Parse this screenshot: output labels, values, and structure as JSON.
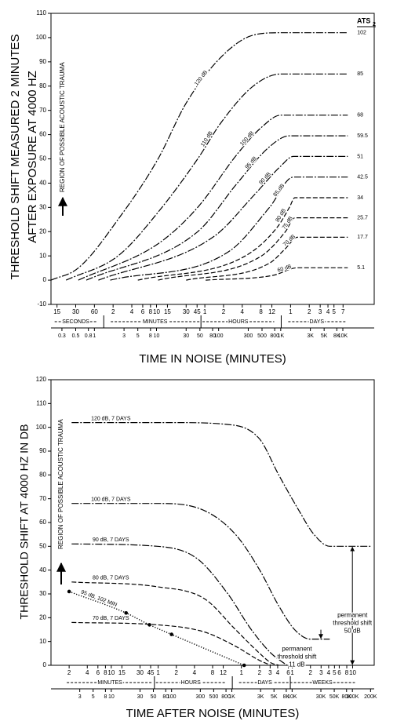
{
  "chart_data": [
    {
      "type": "line",
      "y_label": [
        "THRESHOLD SHIFT MEASURED 2 MINUTES",
        "AFTER EXPOSURE AT 4000 HZ"
      ],
      "x_label": "TIME IN NOISE (MINUTES)",
      "region_label": "REGION OF POSSIBLE ACOUSTIC TRAUMA",
      "end_header": "ATS",
      "end_header_sub": "2",
      "log_x": true,
      "xlim": [
        0.2,
        32000
      ],
      "ylim": [
        -10,
        110
      ],
      "yticks": [
        -10,
        0,
        10,
        20,
        30,
        40,
        50,
        60,
        70,
        80,
        90,
        100,
        110
      ],
      "xticks": [
        0.3,
        0.5,
        0.8,
        1,
        3,
        5,
        8,
        10,
        30,
        50,
        80,
        100,
        300,
        500,
        800,
        {
          "value": 1000,
          "label": "1K"
        },
        {
          "value": 3000,
          "label": "3K"
        },
        {
          "value": 5000,
          "label": "5K"
        },
        {
          "value": 8000,
          "label": "8K"
        },
        {
          "value": 10000,
          "label": "10K"
        }
      ],
      "x_groups": [
        {
          "name": "SECONDS",
          "ticks": [
            {
              "value": 0.25,
              "label": "15"
            },
            {
              "value": 0.5,
              "label": "30"
            },
            {
              "value": 1,
              "label": "60"
            }
          ]
        },
        {
          "name": "MINUTES",
          "ticks": [
            2,
            4,
            6,
            8,
            10,
            15,
            30,
            45
          ]
        },
        {
          "name": "HOURS",
          "ticks": [
            {
              "value": 60,
              "label": "1"
            },
            {
              "value": 120,
              "label": "2"
            },
            {
              "value": 240,
              "label": "4"
            },
            {
              "value": 480,
              "label": "8"
            },
            {
              "value": 720,
              "label": "12"
            }
          ]
        },
        {
          "name": "DAYS",
          "ticks": [
            {
              "value": 1440,
              "label": "1"
            },
            {
              "value": 2880,
              "label": "2"
            },
            {
              "value": 4320,
              "label": "3"
            },
            {
              "value": 5760,
              "label": "4"
            },
            {
              "value": 7200,
              "label": "5"
            },
            {
              "value": 10080,
              "label": "7"
            }
          ]
        }
      ],
      "series": [
        {
          "name": "120 dB",
          "color": "#000",
          "style": "dashdot",
          "end_label": "102",
          "x": [
            0.2,
            0.55,
            2.4,
            10.6,
            30,
            110,
            360,
            1000,
            12000
          ],
          "values": [
            0,
            5,
            25,
            50,
            73,
            92,
            101,
            102,
            102
          ]
        },
        {
          "name": "110 dB",
          "color": "#000",
          "style": "dashdot",
          "end_label": "85",
          "x": [
            0.35,
            2.4,
            10.6,
            46,
            110,
            360,
            1000,
            12000
          ],
          "values": [
            0,
            10,
            28,
            50,
            65,
            80,
            85,
            85
          ]
        },
        {
          "name": "100 dB",
          "color": "#000",
          "style": "dashdot",
          "end_label": "68",
          "x": [
            0.55,
            10.6,
            46,
            200,
            490,
            1000,
            12000
          ],
          "values": [
            0,
            15,
            30,
            52,
            63,
            68,
            68
          ]
        },
        {
          "name": "95 dB",
          "color": "#000",
          "style": "dashdot",
          "end_label": "59.5",
          "x": [
            0.74,
            46,
            200,
            660,
            1380,
            12000
          ],
          "values": [
            0,
            20,
            40,
            55,
            59.5,
            59.5
          ]
        },
        {
          "name": "90 dB",
          "color": "#000",
          "style": "dashdot",
          "end_label": "51",
          "x": [
            1.16,
            84,
            370,
            1000,
            1600,
            12000
          ],
          "values": [
            0,
            18,
            35,
            47,
            51,
            51
          ]
        },
        {
          "name": "85 dB",
          "color": "#000",
          "style": "dashdot",
          "end_label": "42.5",
          "x": [
            1.8,
            150,
            660,
            1600,
            12000
          ],
          "values": [
            0,
            12,
            30,
            42.5,
            42.5
          ]
        },
        {
          "name": "80 dB",
          "color": "#000",
          "style": "dashed",
          "end_label": "34",
          "x": [
            5,
            270,
            890,
            1380,
            1690,
            12000
          ],
          "values": [
            0,
            10,
            22,
            30,
            34,
            34
          ]
        },
        {
          "name": "75 dB",
          "color": "#000",
          "style": "dashed",
          "end_label": "25.7",
          "x": [
            10.6,
            490,
            1190,
            1690,
            12000
          ],
          "values": [
            0,
            10,
            20,
            25.7,
            25.7
          ]
        },
        {
          "name": "70 dB",
          "color": "#000",
          "style": "dashed",
          "end_label": "17.7",
          "x": [
            30,
            660,
            1190,
            1860,
            12000
          ],
          "values": [
            0,
            7,
            13,
            17.7,
            17.7
          ]
        },
        {
          "name": "60 dB",
          "color": "#000",
          "style": "dashed",
          "end_label": "5.1",
          "x": [
            62,
            760,
            1860,
            12000
          ],
          "values": [
            0,
            2,
            5.1,
            5.1
          ]
        }
      ]
    },
    {
      "type": "line",
      "y_label": [
        "THRESHOLD SHIFT AT 4000 HZ IN DB"
      ],
      "x_label": "TIME AFTER  NOISE (MINUTES)",
      "region_label": "REGION OF POSSIBLE ACOUSTIC TRAUMA",
      "log_x": true,
      "xlim": [
        1,
        230000
      ],
      "ylim": [
        0,
        120
      ],
      "yticks": [
        0,
        10,
        20,
        30,
        40,
        50,
        60,
        70,
        80,
        90,
        100,
        110,
        120
      ],
      "xticks": [
        3,
        5,
        8,
        10,
        30,
        50,
        80,
        100,
        300,
        500,
        800,
        {
          "value": 1000,
          "label": "1K"
        },
        {
          "value": 3000,
          "label": "3K"
        },
        {
          "value": 5000,
          "label": "5K"
        },
        {
          "value": 8000,
          "label": "8K"
        },
        {
          "value": 10000,
          "label": "10K"
        },
        {
          "value": 30000,
          "label": "30K"
        },
        {
          "value": 50000,
          "label": "50K"
        },
        {
          "value": 80000,
          "label": "80K"
        },
        {
          "value": 100000,
          "label": "100K"
        },
        {
          "value": 200000,
          "label": "200K"
        }
      ],
      "x_groups": [
        {
          "name": "MINUTES",
          "ticks": [
            2,
            4,
            6,
            8,
            10,
            15,
            30,
            45
          ]
        },
        {
          "name": "HOURS",
          "ticks": [
            {
              "value": 60,
              "label": "1"
            },
            {
              "value": 120,
              "label": "2"
            },
            {
              "value": 240,
              "label": "4"
            },
            {
              "value": 480,
              "label": "8"
            },
            {
              "value": 720,
              "label": "12"
            }
          ]
        },
        {
          "name": "DAYS",
          "ticks": [
            {
              "value": 1440,
              "label": "1"
            },
            {
              "value": 2880,
              "label": "2"
            },
            {
              "value": 4320,
              "label": "3"
            },
            {
              "value": 5760,
              "label": "4"
            },
            {
              "value": 8640,
              "label": "6"
            }
          ]
        },
        {
          "name": "WEEKS",
          "ticks": [
            {
              "value": 10080,
              "label": "1"
            },
            {
              "value": 20160,
              "label": "2"
            },
            {
              "value": 30240,
              "label": "3"
            },
            {
              "value": 40320,
              "label": "4"
            },
            {
              "value": 50400,
              "label": "5"
            },
            {
              "value": 60480,
              "label": "6"
            },
            {
              "value": 80640,
              "label": "8"
            },
            {
              "value": 100800,
              "label": "10"
            }
          ]
        }
      ],
      "series": [
        {
          "name": "120 dB, 7 DAYS",
          "color": "#000",
          "style": "dashdot",
          "x": [
            2.2,
            100,
            1000,
            2900,
            6000,
            13000,
            23000,
            42000,
            200000
          ],
          "values": [
            102,
            102,
            101,
            95,
            80,
            65,
            55,
            50,
            50
          ]
        },
        {
          "name": "100 dB, 7 DAYS",
          "color": "#000",
          "style": "dashdot",
          "x": [
            2.2,
            58,
            350,
            1150,
            2900,
            6000,
            11000,
            20000,
            42000
          ],
          "values": [
            68,
            68,
            65,
            55,
            40,
            25,
            15,
            11,
            11
          ]
        },
        {
          "name": "90 dB, 7 DAYS",
          "color": "#000",
          "style": "dashdot",
          "x": [
            2.2,
            58,
            260,
            860,
            2100,
            4500,
            8200
          ],
          "values": [
            51,
            50,
            45,
            30,
            15,
            5,
            0
          ]
        },
        {
          "name": "80 dB, 7 DAYS",
          "color": "#000",
          "style": "dashed",
          "x": [
            2.2,
            58,
            350,
            1150,
            2900,
            4500,
            6000
          ],
          "values": [
            35,
            33,
            28,
            15,
            5,
            1,
            0
          ]
        },
        {
          "name": "70 dB, 7 DAYS",
          "color": "#000",
          "style": "dashed",
          "x": [
            2.2,
            58,
            350,
            1150,
            2900,
            4500
          ],
          "values": [
            18,
            17,
            14,
            8,
            2,
            0
          ]
        },
        {
          "name": "95 dB, 102 MIN",
          "color": "#000",
          "style": "dotted",
          "markers": true,
          "x": [
            2,
            17.6,
            43,
            100,
            1600
          ],
          "values": [
            31,
            22,
            17,
            13,
            0
          ]
        }
      ],
      "annotations": [
        {
          "lines": [
            "permanent",
            "threshold shift",
            "50 dB"
          ],
          "series": 0
        },
        {
          "lines": [
            "permanent",
            "threshold shift",
            "11 dB"
          ],
          "series": 1
        }
      ]
    }
  ]
}
